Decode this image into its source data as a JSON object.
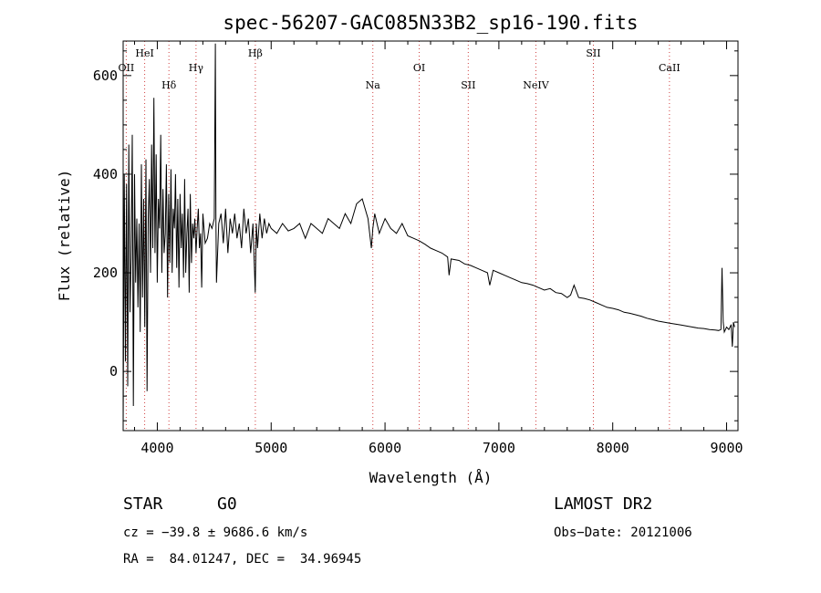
{
  "chart_data": {
    "type": "line",
    "title": "spec-56207-GAC085N33B2_sp16-190.fits",
    "xlabel": "Wavelength (Å)",
    "ylabel": "Flux (relative)",
    "xlim": [
      3700,
      9100
    ],
    "ylim": [
      -120,
      670
    ],
    "xticks": [
      4000,
      5000,
      6000,
      7000,
      8000,
      9000
    ],
    "yticks": [
      0,
      200,
      400,
      600
    ],
    "grid": false,
    "line_color": "#000000",
    "marker_color": "#d04040",
    "lines": [
      {
        "label": "OII",
        "x": 3727,
        "row": 3
      },
      {
        "label": "HeI",
        "x": 3889,
        "row": 1
      },
      {
        "label": "Hδ",
        "x": 4102,
        "row": 4
      },
      {
        "label": "Hγ",
        "x": 4340,
        "row": 3
      },
      {
        "label": "Hβ",
        "x": 4861,
        "row": 1
      },
      {
        "label": "Na",
        "x": 5893,
        "row": 4
      },
      {
        "label": "OI",
        "x": 6300,
        "row": 3
      },
      {
        "label": "SII",
        "x": 6731,
        "row": 4
      },
      {
        "label": "NeIV",
        "x": 7325,
        "row": 4
      },
      {
        "label": "SII",
        "x": 7830,
        "row": 1
      },
      {
        "label": "CaII",
        "x": 8498,
        "row": 3
      }
    ],
    "series": [
      {
        "x": [
          3700,
          3710,
          3720,
          3730,
          3740,
          3750,
          3760,
          3770,
          3780,
          3790,
          3800,
          3810,
          3820,
          3830,
          3840,
          3850,
          3860,
          3870,
          3880,
          3890,
          3900,
          3910,
          3920,
          3930,
          3940,
          3950,
          3960,
          3970,
          3980,
          3990,
          4000,
          4010,
          4020,
          4030,
          4040,
          4050,
          4060,
          4070,
          4080,
          4090,
          4100,
          4110,
          4120,
          4130,
          4140,
          4150,
          4160,
          4170,
          4180,
          4190,
          4200,
          4210,
          4220,
          4230,
          4240,
          4250,
          4260,
          4270,
          4280,
          4290,
          4300,
          4310,
          4320,
          4330,
          4340,
          4350,
          4360,
          4370,
          4380,
          4390,
          4400,
          4420,
          4440,
          4460,
          4480,
          4500,
          4510,
          4515,
          4520,
          4540,
          4560,
          4580,
          4600,
          4620,
          4640,
          4660,
          4680,
          4700,
          4720,
          4740,
          4760,
          4780,
          4800,
          4820,
          4840,
          4860,
          4870,
          4880,
          4900,
          4920,
          4940,
          4960,
          4980,
          5000,
          5050,
          5100,
          5150,
          5200,
          5250,
          5300,
          5350,
          5400,
          5450,
          5500,
          5550,
          5600,
          5650,
          5700,
          5750,
          5800,
          5850,
          5880,
          5893,
          5910,
          5950,
          6000,
          6050,
          6100,
          6150,
          6200,
          6250,
          6300,
          6350,
          6400,
          6450,
          6500,
          6550,
          6563,
          6580,
          6650,
          6700,
          6750,
          6800,
          6850,
          6900,
          6920,
          6950,
          7000,
          7050,
          7100,
          7150,
          7200,
          7250,
          7300,
          7350,
          7400,
          7450,
          7500,
          7550,
          7600,
          7630,
          7660,
          7700,
          7750,
          7800,
          7850,
          7900,
          7950,
          8000,
          8050,
          8100,
          8150,
          8200,
          8250,
          8300,
          8350,
          8400,
          8450,
          8500,
          8550,
          8600,
          8650,
          8700,
          8750,
          8800,
          8850,
          8900,
          8930,
          8950,
          8960,
          8970,
          8980,
          9000,
          9020,
          9040,
          9050,
          9060,
          9070
        ],
        "y": [
          -120,
          400,
          20,
          380,
          -30,
          460,
          120,
          230,
          480,
          -70,
          400,
          180,
          310,
          130,
          300,
          80,
          420,
          150,
          350,
          90,
          430,
          -40,
          310,
          390,
          200,
          460,
          250,
          555,
          240,
          440,
          180,
          350,
          290,
          480,
          200,
          370,
          240,
          280,
          420,
          150,
          360,
          220,
          410,
          200,
          330,
          290,
          400,
          210,
          350,
          170,
          360,
          250,
          320,
          190,
          390,
          200,
          280,
          330,
          160,
          360,
          220,
          300,
          270,
          310,
          240,
          290,
          330,
          250,
          280,
          170,
          320,
          260,
          270,
          300,
          290,
          310,
          665,
          310,
          180,
          300,
          320,
          260,
          330,
          240,
          310,
          280,
          320,
          270,
          300,
          250,
          330,
          280,
          310,
          240,
          300,
          160,
          300,
          250,
          320,
          270,
          310,
          280,
          300,
          290,
          280,
          300,
          285,
          290,
          300,
          270,
          300,
          290,
          280,
          310,
          300,
          290,
          320,
          300,
          340,
          350,
          310,
          250,
          290,
          320,
          280,
          310,
          290,
          280,
          300,
          275,
          270,
          265,
          258,
          250,
          245,
          240,
          232,
          195,
          228,
          225,
          218,
          215,
          210,
          205,
          200,
          175,
          205,
          200,
          195,
          190,
          185,
          180,
          178,
          175,
          170,
          165,
          168,
          160,
          158,
          150,
          155,
          175,
          150,
          148,
          145,
          140,
          135,
          130,
          128,
          125,
          120,
          118,
          115,
          112,
          108,
          105,
          102,
          100,
          98,
          96,
          94,
          92,
          90,
          88,
          87,
          85,
          84,
          83,
          85,
          210,
          100,
          80,
          90,
          85,
          95,
          50,
          100,
          90
        ]
      }
    ],
    "footer": {
      "obj_type": "STAR",
      "subclass": "G0",
      "survey": "LAMOST DR2",
      "cz": "cz = −39.8 ± 9686.6 km/s",
      "obs_date": "Obs−Date: 20121006",
      "coords": "RA =  84.01247, DEC =  34.96945"
    }
  }
}
